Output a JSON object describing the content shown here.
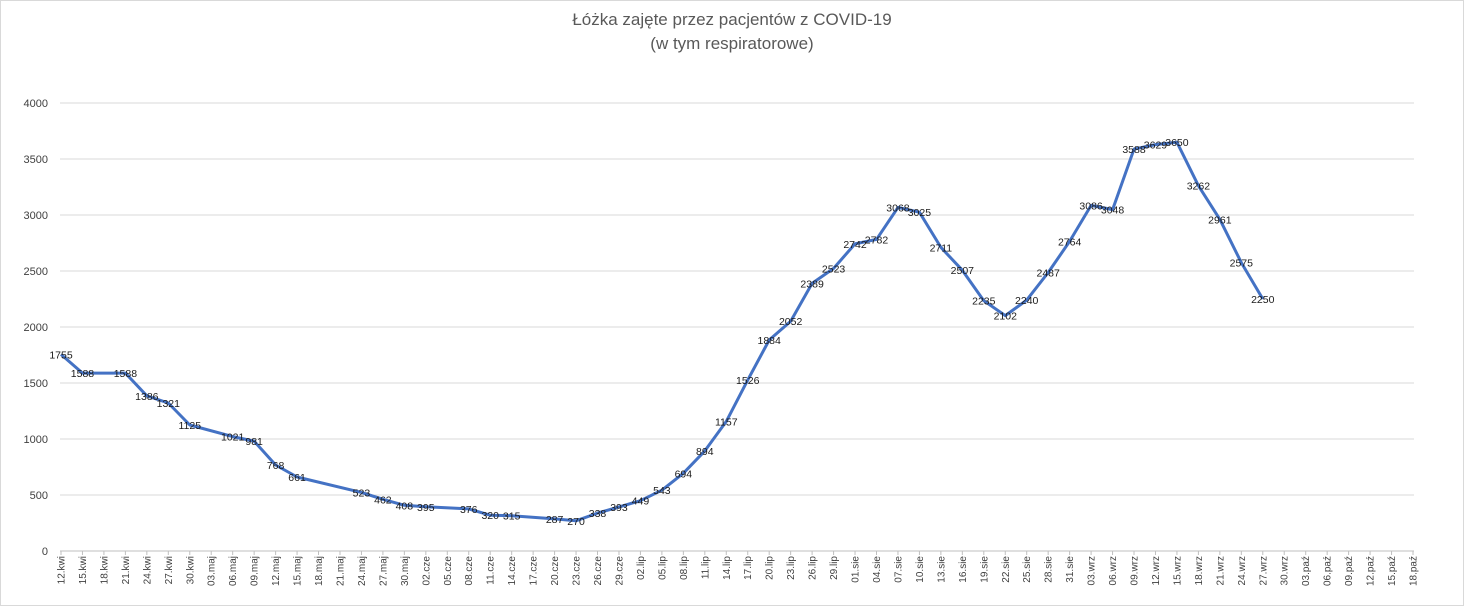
{
  "chart_data": {
    "type": "line",
    "title": "Łóżka zajęte przez pacjentów z COVID-19",
    "subtitle": "(w tym respiratorowe)",
    "xlabel": "",
    "ylabel": "",
    "ylim": [
      0,
      4000
    ],
    "yticks": [
      0,
      500,
      1000,
      1500,
      2000,
      2500,
      3000,
      3500,
      4000
    ],
    "grid": true,
    "legend": "none",
    "line_color": "#4472c4",
    "categories": [
      "12.kwi",
      "15.kwi",
      "18.kwi",
      "21.kwi",
      "24.kwi",
      "27.kwi",
      "30.kwi",
      "03.maj",
      "06.maj",
      "09.maj",
      "12.maj",
      "15.maj",
      "18.maj",
      "21.maj",
      "24.maj",
      "27.maj",
      "30.maj",
      "02.cze",
      "05.cze",
      "08.cze",
      "11.cze",
      "14.cze",
      "17.cze",
      "20.cze",
      "23.cze",
      "26.cze",
      "29.cze",
      "02.lip",
      "05.lip",
      "08.lip",
      "11.lip",
      "14.lip",
      "17.lip",
      "20.lip",
      "23.lip",
      "26.lip",
      "29.lip",
      "01.sie",
      "04.sie",
      "07.sie",
      "10.sie",
      "13.sie",
      "16.sie",
      "19.sie",
      "22.sie",
      "25.sie",
      "28.sie",
      "31.sie",
      "03.wrz",
      "06.wrz",
      "09.wrz",
      "12.wrz",
      "15.wrz",
      "18.wrz",
      "21.wrz",
      "24.wrz",
      "27.wrz",
      "30.wrz",
      "03.paź",
      "06.paź",
      "09.paź",
      "12.paź",
      "15.paź",
      "18.paź"
    ],
    "series": [
      {
        "values": [
          1755,
          1588,
          1588,
          1386,
          1321,
          1125,
          1021,
          981,
          768,
          661,
          523,
          462,
          408,
          395,
          376,
          320,
          315,
          287,
          270,
          338,
          393,
          449,
          543,
          694,
          894,
          1157,
          1526,
          1884,
          2052,
          2389,
          2523,
          2742,
          2782,
          3068,
          3025,
          2711,
          2507,
          2235,
          2102,
          2240,
          2487,
          2764,
          3086,
          3048,
          3588,
          3629,
          3650,
          3262,
          2961,
          2575,
          2250
        ],
        "x": [
          "12.kwi",
          "15.kwi",
          "21.kwi",
          "24.kwi",
          "27.kwi",
          "30.kwi",
          "06.maj",
          "09.maj",
          "12.maj",
          "15.maj",
          "24.maj",
          "27.maj",
          "30.maj",
          "02.cze",
          "08.cze",
          "11.cze",
          "14.cze",
          "20.cze",
          "23.cze",
          "26.cze",
          "29.cze",
          "02.lip",
          "05.lip",
          "08.lip",
          "11.lip",
          "14.lip",
          "17.lip",
          "20.lip",
          "23.lip",
          "26.lip",
          "29.lip",
          "01.sie",
          "04.sie",
          "07.sie",
          "10.sie",
          "13.sie",
          "16.sie",
          "19.sie",
          "22.sie",
          "25.sie",
          "28.sie",
          "31.sie",
          "03.wrz",
          "06.wrz",
          "09.wrz",
          "12.wrz",
          "15.wrz",
          "18.wrz",
          "21.wrz",
          "24.wrz",
          "27.wrz"
        ]
      }
    ]
  }
}
